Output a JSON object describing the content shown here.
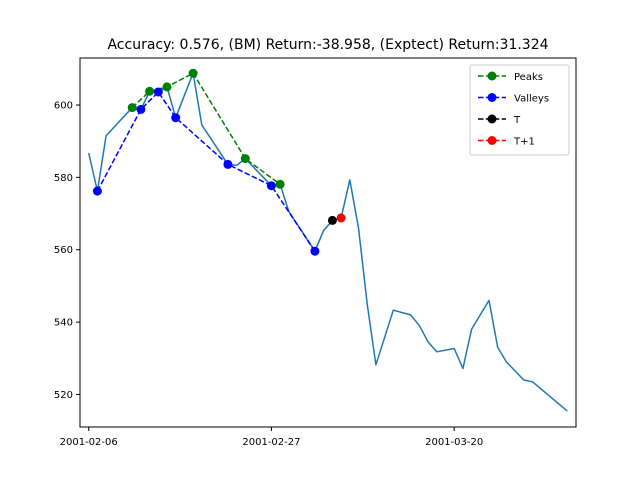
{
  "chart_data": {
    "type": "line",
    "title": "Accuracy: 0.576, (BM) Return:-38.958, (Exptect) Return:31.324",
    "xlabel": "",
    "ylabel": "",
    "x_start": "2001-02-06",
    "x_ticks": [
      {
        "x": "2001-02-06",
        "label": "2001-02-06"
      },
      {
        "x": "2001-02-27",
        "label": "2001-02-27"
      },
      {
        "x": "2001-03-20",
        "label": "2001-03-20"
      }
    ],
    "y_ticks": [
      520,
      540,
      560,
      580,
      600
    ],
    "xlim": [
      "2001-02-05",
      "2001-04-03"
    ],
    "ylim": [
      511,
      613
    ],
    "grid": false,
    "legend_position": "top-right",
    "series": [
      {
        "role": "price",
        "color": "#1f77b4",
        "points": [
          {
            "x": "2001-02-06",
            "y": 586.7
          },
          {
            "x": "2001-02-07",
            "y": 576.2
          },
          {
            "x": "2001-02-08",
            "y": 591.5
          },
          {
            "x": "2001-02-11",
            "y": 599.3
          },
          {
            "x": "2001-02-12",
            "y": 598.8
          },
          {
            "x": "2001-02-13",
            "y": 603.8
          },
          {
            "x": "2001-02-14",
            "y": 603.6
          },
          {
            "x": "2001-02-15",
            "y": 605.0
          },
          {
            "x": "2001-02-16",
            "y": 596.5
          },
          {
            "x": "2001-02-18",
            "y": 608.8
          },
          {
            "x": "2001-02-19",
            "y": 594.5
          },
          {
            "x": "2001-02-22",
            "y": 583.6
          },
          {
            "x": "2001-02-23",
            "y": 583.3
          },
          {
            "x": "2001-02-24",
            "y": 585.2
          },
          {
            "x": "2001-02-27",
            "y": 577.7
          },
          {
            "x": "2001-02-28",
            "y": 578.1
          },
          {
            "x": "2001-03-01",
            "y": 570.6
          },
          {
            "x": "2001-03-04",
            "y": 559.6
          },
          {
            "x": "2001-03-05",
            "y": 565.3
          },
          {
            "x": "2001-03-06",
            "y": 568.1
          },
          {
            "x": "2001-03-07",
            "y": 568.8
          },
          {
            "x": "2001-03-08",
            "y": 579.3
          },
          {
            "x": "2001-03-09",
            "y": 566.0
          },
          {
            "x": "2001-03-10",
            "y": 545.0
          },
          {
            "x": "2001-03-11",
            "y": 528.2
          },
          {
            "x": "2001-03-13",
            "y": 543.3
          },
          {
            "x": "2001-03-15",
            "y": 542.0
          },
          {
            "x": "2001-03-16",
            "y": 539.0
          },
          {
            "x": "2001-03-17",
            "y": 534.5
          },
          {
            "x": "2001-03-18",
            "y": 531.8
          },
          {
            "x": "2001-03-20",
            "y": 532.7
          },
          {
            "x": "2001-03-21",
            "y": 527.2
          },
          {
            "x": "2001-03-22",
            "y": 538.0
          },
          {
            "x": "2001-03-24",
            "y": 546.0
          },
          {
            "x": "2001-03-25",
            "y": 533.0
          },
          {
            "x": "2001-03-26",
            "y": 529.0
          },
          {
            "x": "2001-03-28",
            "y": 524.0
          },
          {
            "x": "2001-03-29",
            "y": 523.5
          },
          {
            "x": "2001-04-02",
            "y": 515.4
          }
        ]
      },
      {
        "role": "peaks",
        "name": "Peaks",
        "color": "#008000",
        "style": "dashed",
        "marker": "circle",
        "points": [
          {
            "x": "2001-02-11",
            "y": 599.3
          },
          {
            "x": "2001-02-13",
            "y": 603.8
          },
          {
            "x": "2001-02-15",
            "y": 605.0
          },
          {
            "x": "2001-02-18",
            "y": 608.8
          },
          {
            "x": "2001-02-24",
            "y": 585.2
          },
          {
            "x": "2001-02-28",
            "y": 578.1
          }
        ]
      },
      {
        "role": "valleys",
        "name": "Valleys",
        "color": "#0000ff",
        "style": "dashed",
        "marker": "circle",
        "points": [
          {
            "x": "2001-02-07",
            "y": 576.2
          },
          {
            "x": "2001-02-12",
            "y": 598.8
          },
          {
            "x": "2001-02-14",
            "y": 603.6
          },
          {
            "x": "2001-02-16",
            "y": 596.5
          },
          {
            "x": "2001-02-22",
            "y": 583.6
          },
          {
            "x": "2001-02-27",
            "y": 577.7
          },
          {
            "x": "2001-03-04",
            "y": 559.6
          }
        ]
      },
      {
        "role": "t",
        "name": "T",
        "color": "#000000",
        "style": "dashed",
        "marker": "circle",
        "points": [
          {
            "x": "2001-03-06",
            "y": 568.1
          }
        ]
      },
      {
        "role": "t_plus_1",
        "name": "T+1",
        "color": "#ff0000",
        "style": "dashed",
        "marker": "circle",
        "points": [
          {
            "x": "2001-03-07",
            "y": 568.8
          }
        ]
      }
    ]
  }
}
